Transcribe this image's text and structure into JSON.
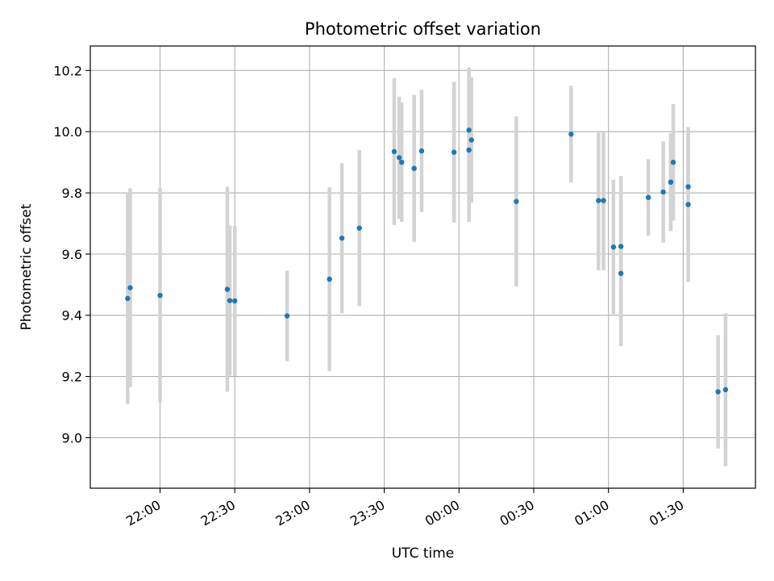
{
  "chart_data": {
    "type": "scatter",
    "title": "Photometric offset variation",
    "xlabel": "UTC time",
    "ylabel": "Photometric offset",
    "x_axis": "time",
    "x_ticks": [
      "22:00",
      "22:30",
      "23:00",
      "23:30",
      "00:00",
      "00:30",
      "01:00",
      "01:30"
    ],
    "xlim": [
      "21:32",
      "01:59"
    ],
    "y_ticks": [
      "9.0",
      "9.2",
      "9.4",
      "9.6",
      "9.8",
      "10.0",
      "10.2"
    ],
    "ylim": [
      8.835,
      10.28
    ],
    "grid": true,
    "marker_color": "#1f77b4",
    "errorbar_color": "#d3d3d3",
    "points": [
      {
        "t": "21:47",
        "y": 9.455,
        "err": 0.345
      },
      {
        "t": "21:48",
        "y": 9.49,
        "err": 0.325
      },
      {
        "t": "22:00",
        "y": 9.465,
        "err": 0.35
      },
      {
        "t": "22:27",
        "y": 9.485,
        "err": 0.335
      },
      {
        "t": "22:28",
        "y": 9.448,
        "err": 0.245
      },
      {
        "t": "22:30",
        "y": 9.447,
        "err": 0.245
      },
      {
        "t": "22:51",
        "y": 9.398,
        "err": 0.148
      },
      {
        "t": "23:08",
        "y": 9.518,
        "err": 0.3
      },
      {
        "t": "23:13",
        "y": 9.652,
        "err": 0.245
      },
      {
        "t": "23:20",
        "y": 9.685,
        "err": 0.255
      },
      {
        "t": "23:34",
        "y": 9.935,
        "err": 0.24
      },
      {
        "t": "23:36",
        "y": 9.915,
        "err": 0.2
      },
      {
        "t": "23:37",
        "y": 9.9,
        "err": 0.195
      },
      {
        "t": "23:42",
        "y": 9.88,
        "err": 0.24
      },
      {
        "t": "23:45",
        "y": 9.937,
        "err": 0.2
      },
      {
        "t": "23:58",
        "y": 9.933,
        "err": 0.23
      },
      {
        "t": "00:04",
        "y": 9.94,
        "err": 0.235
      },
      {
        "t": "00:04",
        "y": 10.005,
        "err": 0.205
      },
      {
        "t": "00:05",
        "y": 9.973,
        "err": 0.205
      },
      {
        "t": "00:23",
        "y": 9.772,
        "err": 0.278
      },
      {
        "t": "00:45",
        "y": 9.992,
        "err": 0.158
      },
      {
        "t": "00:56",
        "y": 9.775,
        "err": 0.228
      },
      {
        "t": "00:58",
        "y": 9.775,
        "err": 0.228
      },
      {
        "t": "01:02",
        "y": 9.623,
        "err": 0.22
      },
      {
        "t": "01:05",
        "y": 9.625,
        "err": 0.23
      },
      {
        "t": "01:05",
        "y": 9.537,
        "err": 0.238
      },
      {
        "t": "01:16",
        "y": 9.785,
        "err": 0.125
      },
      {
        "t": "01:22",
        "y": 9.803,
        "err": 0.165
      },
      {
        "t": "01:25",
        "y": 9.835,
        "err": 0.16
      },
      {
        "t": "01:25",
        "y": 9.835,
        "err": 0.155
      },
      {
        "t": "01:26",
        "y": 9.9,
        "err": 0.19
      },
      {
        "t": "01:32",
        "y": 9.82,
        "err": 0.18
      },
      {
        "t": "01:32",
        "y": 9.762,
        "err": 0.253
      },
      {
        "t": "01:44",
        "y": 9.15,
        "err": 0.185
      },
      {
        "t": "01:47",
        "y": 9.157,
        "err": 0.25
      }
    ]
  }
}
